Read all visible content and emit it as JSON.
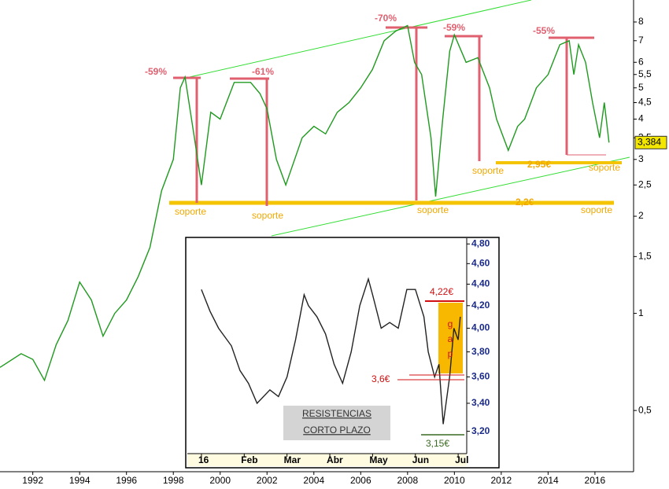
{
  "chart_data": [
    {
      "type": "line",
      "log_scale": true,
      "color": "#1f9a1f",
      "x": [
        1990.6,
        1991.5,
        1992,
        1992.5,
        1993,
        1993.5,
        1994,
        1994.5,
        1995,
        1995.5,
        1996,
        1996.5,
        1997,
        1997.5,
        1998,
        1998.3,
        1998.5,
        1998.9,
        1999.2,
        1999.6,
        2000,
        2000.6,
        2001.3,
        2001.7,
        2002,
        2002.4,
        2002.8,
        2003.5,
        2004,
        2004.5,
        2005,
        2005.5,
        2006,
        2006.5,
        2007,
        2007.5,
        2008,
        2008.3,
        2008.6,
        2009,
        2009.2,
        2009.5,
        2009.8,
        2010,
        2010.5,
        2011,
        2011.5,
        2011.8,
        2012.3,
        2012.7,
        2013,
        2013.5,
        2014,
        2014.5,
        2014.9,
        2015.1,
        2015.3,
        2015.6,
        2015.9,
        2016.2,
        2016.4,
        2016.6
      ],
      "values": [
        0.68,
        0.75,
        0.72,
        0.62,
        0.8,
        0.95,
        1.25,
        1.1,
        0.85,
        1.0,
        1.1,
        1.3,
        1.6,
        2.4,
        3.0,
        5.0,
        5.4,
        3.5,
        2.5,
        4.2,
        4.0,
        5.2,
        5.2,
        4.8,
        4.3,
        3.0,
        2.5,
        3.5,
        3.8,
        3.6,
        4.2,
        4.5,
        5.0,
        5.7,
        7.0,
        7.5,
        7.8,
        6.0,
        5.5,
        3.5,
        2.3,
        4.0,
        6.5,
        7.3,
        6.0,
        6.2,
        5.0,
        4.0,
        3.2,
        3.8,
        4.0,
        5.0,
        5.5,
        6.8,
        7.0,
        5.5,
        6.8,
        6.0,
        4.5,
        3.5,
        4.5,
        3.384
      ],
      "xlim": [
        1990.6,
        2017.65
      ],
      "xticks": [
        1992,
        1994,
        1996,
        1998,
        2000,
        2002,
        2004,
        2006,
        2008,
        2010,
        2012,
        2014,
        2016
      ],
      "ylim": [
        0.323,
        9.36
      ],
      "yticks": [
        {
          "value": 0.5,
          "label": "0,5"
        },
        1,
        {
          "value": 1.5,
          "label": "1,5"
        },
        2,
        {
          "value": 2.5,
          "label": "2,5"
        },
        3,
        {
          "value": 3.5,
          "label": "3,5"
        },
        4,
        {
          "value": 4.5,
          "label": "4,5"
        },
        5,
        {
          "value": 5.5,
          "label": "5,5"
        },
        6,
        7,
        8
      ],
      "last_price": {
        "value": 3.384,
        "label": "3,384"
      },
      "annotations": [
        "-59%",
        "-61%",
        "-70%",
        "-59%",
        "-55%",
        "soporte",
        "soporte",
        "soporte",
        "soporte",
        "soporte",
        "soporte",
        "2,95€",
        "2,2€"
      ]
    },
    {
      "type": "line",
      "log_scale": true,
      "color": "#222222",
      "x": [
        1.0,
        1.2,
        1.4,
        1.7,
        1.9,
        2.1,
        2.3,
        2.6,
        2.8,
        3.0,
        3.2,
        3.4,
        3.5,
        3.7,
        3.9,
        4.1,
        4.3,
        4.5,
        4.7,
        4.9,
        5.0,
        5.2,
        5.4,
        5.6,
        5.8,
        6.0,
        6.2,
        6.3,
        6.45,
        6.55,
        6.65,
        6.8,
        6.9,
        7.0,
        7.05
      ],
      "values": [
        4.35,
        4.15,
        4.0,
        3.85,
        3.65,
        3.55,
        3.4,
        3.5,
        3.45,
        3.6,
        3.9,
        4.3,
        4.2,
        4.1,
        3.95,
        3.7,
        3.55,
        3.8,
        4.2,
        4.45,
        4.3,
        4.0,
        4.05,
        4.0,
        4.35,
        4.35,
        4.1,
        3.8,
        3.6,
        3.7,
        3.25,
        3.6,
        4.0,
        3.9,
        4.1
      ],
      "xlim": [
        0.67,
        7.2
      ],
      "xticks": [
        {
          "value": 1,
          "label": "16"
        },
        {
          "value": 2,
          "label": "Feb"
        },
        {
          "value": 3,
          "label": "Mar"
        },
        {
          "value": 4,
          "label": "Abr"
        },
        {
          "value": 5,
          "label": "May"
        },
        {
          "value": 6,
          "label": "Jun"
        },
        {
          "value": 7,
          "label": "Jul"
        }
      ],
      "ylim": [
        3.049,
        4.86
      ],
      "yticks": [
        {
          "value": 3.2,
          "label": "3,20"
        },
        {
          "value": 3.4,
          "label": "3,40"
        },
        {
          "value": 3.6,
          "label": "3,60"
        },
        {
          "value": 3.8,
          "label": "3,80"
        },
        {
          "value": 4.0,
          "label": "4,00"
        },
        {
          "value": 4.2,
          "label": "4,20"
        },
        {
          "value": 4.4,
          "label": "4,40"
        },
        {
          "value": 4.6,
          "label": "4,60"
        },
        {
          "value": 4.8,
          "label": "4,80"
        }
      ],
      "annotations": [
        "4,22€",
        "3,6€",
        "3,15€",
        "g",
        "a",
        "p",
        "RESISTENCIAS",
        "CORTO PLAZO"
      ]
    }
  ]
}
